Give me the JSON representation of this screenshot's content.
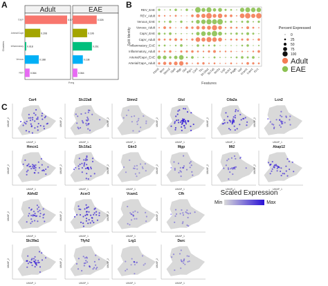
{
  "panel_a": {
    "letter": "A",
    "facets": [
      "Adult",
      "EAE"
    ],
    "ylabel": "Clusters",
    "xlabel": "Freq",
    "clusters": [
      "CapV",
      "Arterial/Capil",
      "Inflammatory",
      "Venous",
      "REV"
    ],
    "colors": [
      "#f8766d",
      "#a3a500",
      "#00bf7d",
      "#00b0f6",
      "#e76bf3"
    ],
    "adult_values": [
      0.572,
      0.208,
      0.018,
      0.188,
      0.064
    ],
    "eae_values": [
      0.326,
      0.196,
      0.261,
      0.138,
      0.064
    ],
    "adult_labels": [
      "0.572",
      "0.208",
      "0.018",
      "0.188",
      "0.064"
    ],
    "eae_labels": [
      "0.326",
      "0.196",
      "0.261",
      "0.138",
      "0.064"
    ]
  },
  "panel_b": {
    "letter": "B",
    "ylabel": "Split Identity",
    "xlabel": "Features",
    "rows": [
      "REV_EAE",
      "REV_Adult",
      "Venous_EAE",
      "Venous_Adult",
      "CapV_EAE",
      "CapV_Adult",
      "Inflammatory_EAE",
      "Inflammatory_Adult",
      "Arterial/CapA_EAE",
      "Arterial/CapA_Adult"
    ],
    "features": [
      "Fbln5",
      "Bmx",
      "Stmn2",
      "Gja4",
      "Mgp",
      "Glul",
      "Rgcc",
      "Car4",
      "Tfrc",
      "Slc16a1",
      "Slc7a5",
      "Itm2a",
      "Lrg1",
      "Ackr1",
      "Pdgfb",
      "Vwf",
      "Vcam1",
      "Icam1",
      "Il1r1"
    ],
    "legend_title": "Percent Expressed",
    "size_legend": [
      "0",
      "25",
      "50",
      "75",
      "100"
    ],
    "group_legend": [
      "Adult",
      "EAE"
    ],
    "group_colors": [
      "#f47c55",
      "#8cc152"
    ]
  },
  "panel_c": {
    "letter": "C",
    "x_axis_label": "UMAP_1",
    "y_axis_label": "UMAP_2",
    "genes": [
      "Car4",
      "Slc22a8",
      "Stmn2",
      "Glul",
      "Ctla2a",
      "Lcn2",
      "Hmcn1",
      "Slc16a1",
      "Gkn3",
      "Mgp",
      "Mt2",
      "Akap12",
      "Abhd2",
      "Acer3",
      "Vcam1",
      "Cfh",
      "Slc39a1",
      "Tfyh2",
      "Lrg1",
      "Darc"
    ],
    "legend_title": "Scaled Expression",
    "legend_min": "Min",
    "legend_max": "Max",
    "low_color": "#d9d9d9",
    "high_color": "#2a11d6"
  }
}
